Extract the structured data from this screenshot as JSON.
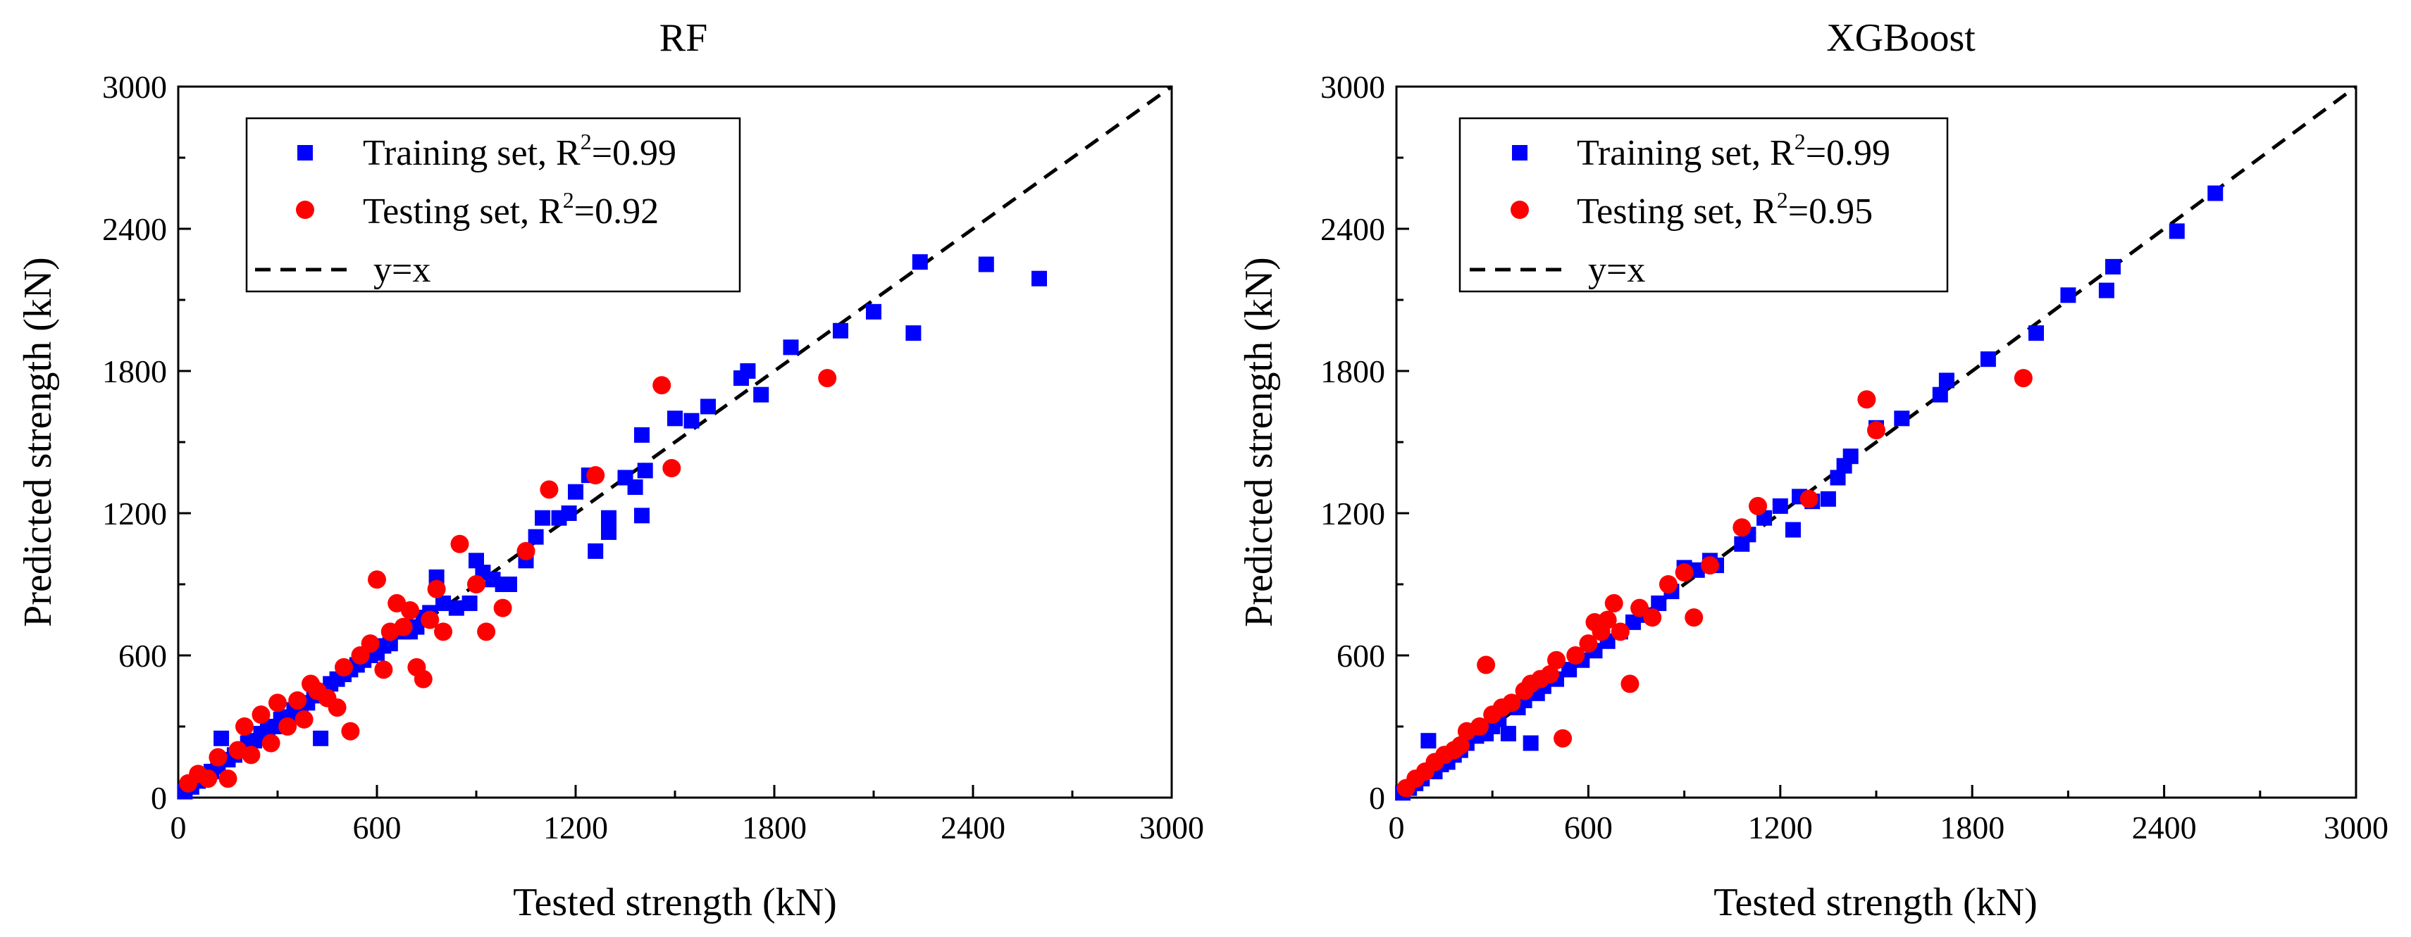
{
  "chart_data": [
    {
      "type": "scatter",
      "title": "RF",
      "xlabel": "Tested strength (kN)",
      "ylabel": "Predicted strength (kN)",
      "xlim": [
        0,
        3000
      ],
      "ylim": [
        0,
        3000
      ],
      "xticks": [
        0,
        600,
        1200,
        1800,
        2400,
        3000
      ],
      "yticks": [
        0,
        600,
        1200,
        1800,
        2400,
        3000
      ],
      "tick_labels": [
        "0",
        "600",
        "1200",
        "1800",
        "2400",
        "3000"
      ],
      "legend_position": "top-left",
      "reference_line": {
        "label": "y=x",
        "slope": 1,
        "intercept": 0,
        "style": "dashed",
        "color": "#000000"
      },
      "series": [
        {
          "name": "Training set, R2=0.99",
          "legend_label": "Training set, R",
          "legend_sup": "2",
          "legend_value": "=0.99",
          "marker": "square",
          "color": "#0000ff",
          "points": [
            [
              20,
              25
            ],
            [
              40,
              45
            ],
            [
              60,
              70
            ],
            [
              80,
              90
            ],
            [
              100,
              110
            ],
            [
              120,
              130
            ],
            [
              130,
              250
            ],
            [
              150,
              160
            ],
            [
              170,
              180
            ],
            [
              190,
              200
            ],
            [
              210,
              230
            ],
            [
              230,
              240
            ],
            [
              250,
              270
            ],
            [
              270,
              290
            ],
            [
              290,
              300
            ],
            [
              310,
              330
            ],
            [
              330,
              340
            ],
            [
              350,
              370
            ],
            [
              370,
              390
            ],
            [
              390,
              400
            ],
            [
              410,
              430
            ],
            [
              430,
              250
            ],
            [
              440,
              450
            ],
            [
              460,
              480
            ],
            [
              480,
              500
            ],
            [
              500,
              520
            ],
            [
              520,
              540
            ],
            [
              540,
              560
            ],
            [
              560,
              580
            ],
            [
              580,
              600
            ],
            [
              600,
              610
            ],
            [
              620,
              640
            ],
            [
              640,
              650
            ],
            [
              660,
              700
            ],
            [
              680,
              700
            ],
            [
              700,
              700
            ],
            [
              720,
              720
            ],
            [
              740,
              760
            ],
            [
              760,
              780
            ],
            [
              780,
              930
            ],
            [
              800,
              820
            ],
            [
              840,
              800
            ],
            [
              880,
              820
            ],
            [
              900,
              1000
            ],
            [
              920,
              950
            ],
            [
              950,
              920
            ],
            [
              980,
              900
            ],
            [
              1000,
              900
            ],
            [
              1050,
              1000
            ],
            [
              1080,
              1100
            ],
            [
              1100,
              1180
            ],
            [
              1150,
              1180
            ],
            [
              1180,
              1200
            ],
            [
              1200,
              1290
            ],
            [
              1240,
              1360
            ],
            [
              1260,
              1040
            ],
            [
              1300,
              1120
            ],
            [
              1300,
              1180
            ],
            [
              1350,
              1350
            ],
            [
              1380,
              1310
            ],
            [
              1400,
              1190
            ],
            [
              1400,
              1530
            ],
            [
              1410,
              1380
            ],
            [
              1500,
              1600
            ],
            [
              1550,
              1590
            ],
            [
              1600,
              1650
            ],
            [
              1700,
              1770
            ],
            [
              1720,
              1800
            ],
            [
              1760,
              1700
            ],
            [
              1850,
              1900
            ],
            [
              2000,
              1970
            ],
            [
              2100,
              2050
            ],
            [
              2220,
              1960
            ],
            [
              2240,
              2260
            ],
            [
              2440,
              2250
            ],
            [
              2600,
              2190
            ]
          ]
        },
        {
          "name": "Testing set, R2=0.92",
          "legend_label": "Testing set, R",
          "legend_sup": "2",
          "legend_value": "=0.92",
          "marker": "circle",
          "color": "#ff0000",
          "points": [
            [
              30,
              60
            ],
            [
              60,
              100
            ],
            [
              90,
              80
            ],
            [
              120,
              170
            ],
            [
              150,
              80
            ],
            [
              180,
              200
            ],
            [
              200,
              300
            ],
            [
              220,
              180
            ],
            [
              250,
              350
            ],
            [
              280,
              230
            ],
            [
              300,
              400
            ],
            [
              330,
              300
            ],
            [
              360,
              410
            ],
            [
              380,
              330
            ],
            [
              400,
              480
            ],
            [
              420,
              450
            ],
            [
              450,
              420
            ],
            [
              480,
              380
            ],
            [
              500,
              550
            ],
            [
              520,
              280
            ],
            [
              550,
              600
            ],
            [
              580,
              650
            ],
            [
              600,
              920
            ],
            [
              620,
              540
            ],
            [
              640,
              700
            ],
            [
              660,
              820
            ],
            [
              680,
              720
            ],
            [
              700,
              790
            ],
            [
              720,
              550
            ],
            [
              740,
              500
            ],
            [
              760,
              750
            ],
            [
              780,
              880
            ],
            [
              800,
              700
            ],
            [
              850,
              1070
            ],
            [
              900,
              900
            ],
            [
              930,
              700
            ],
            [
              980,
              800
            ],
            [
              1050,
              1040
            ],
            [
              1120,
              1300
            ],
            [
              1260,
              1360
            ],
            [
              1460,
              1740
            ],
            [
              1490,
              1390
            ],
            [
              1960,
              1770
            ]
          ]
        }
      ]
    },
    {
      "type": "scatter",
      "title": "XGBoost",
      "xlabel": "Tested strength (kN)",
      "ylabel": "Predicted strength (kN)",
      "xlim": [
        0,
        3000
      ],
      "ylim": [
        0,
        3000
      ],
      "xticks": [
        0,
        600,
        1200,
        1800,
        2400,
        3000
      ],
      "yticks": [
        0,
        600,
        1200,
        1800,
        2400,
        3000
      ],
      "tick_labels": [
        "0",
        "600",
        "1200",
        "1800",
        "2400",
        "3000"
      ],
      "legend_position": "top-left",
      "reference_line": {
        "label": "y=x",
        "slope": 1,
        "intercept": 0,
        "style": "dashed",
        "color": "#000000"
      },
      "series": [
        {
          "name": "Training set, R2=0.99",
          "legend_label": "Training set, R",
          "legend_sup": "2",
          "legend_value": "=0.99",
          "marker": "square",
          "color": "#0000ff",
          "points": [
            [
              20,
              20
            ],
            [
              40,
              40
            ],
            [
              60,
              60
            ],
            [
              80,
              80
            ],
            [
              100,
              240
            ],
            [
              120,
              110
            ],
            [
              140,
              140
            ],
            [
              160,
              150
            ],
            [
              180,
              180
            ],
            [
              200,
              200
            ],
            [
              220,
              230
            ],
            [
              250,
              260
            ],
            [
              280,
              270
            ],
            [
              300,
              300
            ],
            [
              320,
              330
            ],
            [
              350,
              270
            ],
            [
              380,
              380
            ],
            [
              400,
              410
            ],
            [
              420,
              230
            ],
            [
              440,
              440
            ],
            [
              460,
              470
            ],
            [
              500,
              500
            ],
            [
              540,
              540
            ],
            [
              580,
              580
            ],
            [
              620,
              620
            ],
            [
              660,
              660
            ],
            [
              700,
              700
            ],
            [
              740,
              740
            ],
            [
              780,
              770
            ],
            [
              820,
              820
            ],
            [
              860,
              870
            ],
            [
              900,
              970
            ],
            [
              940,
              960
            ],
            [
              980,
              1000
            ],
            [
              1000,
              980
            ],
            [
              1080,
              1070
            ],
            [
              1100,
              1110
            ],
            [
              1150,
              1180
            ],
            [
              1200,
              1230
            ],
            [
              1240,
              1130
            ],
            [
              1260,
              1270
            ],
            [
              1300,
              1250
            ],
            [
              1350,
              1260
            ],
            [
              1380,
              1350
            ],
            [
              1400,
              1400
            ],
            [
              1420,
              1440
            ],
            [
              1500,
              1560
            ],
            [
              1580,
              1600
            ],
            [
              1700,
              1700
            ],
            [
              1720,
              1760
            ],
            [
              1850,
              1850
            ],
            [
              2000,
              1960
            ],
            [
              2100,
              2120
            ],
            [
              2220,
              2140
            ],
            [
              2240,
              2240
            ],
            [
              2440,
              2390
            ],
            [
              2560,
              2550
            ]
          ]
        },
        {
          "name": "Testing set, R2=0.95",
          "legend_label": "Testing set, R",
          "legend_sup": "2",
          "legend_value": "=0.95",
          "marker": "circle",
          "color": "#ff0000",
          "points": [
            [
              30,
              40
            ],
            [
              60,
              80
            ],
            [
              90,
              110
            ],
            [
              120,
              150
            ],
            [
              150,
              180
            ],
            [
              180,
              200
            ],
            [
              200,
              220
            ],
            [
              220,
              280
            ],
            [
              260,
              300
            ],
            [
              280,
              560
            ],
            [
              300,
              350
            ],
            [
              330,
              380
            ],
            [
              360,
              400
            ],
            [
              400,
              450
            ],
            [
              420,
              480
            ],
            [
              450,
              500
            ],
            [
              480,
              520
            ],
            [
              500,
              580
            ],
            [
              520,
              250
            ],
            [
              560,
              600
            ],
            [
              600,
              650
            ],
            [
              620,
              740
            ],
            [
              640,
              700
            ],
            [
              660,
              750
            ],
            [
              680,
              820
            ],
            [
              700,
              700
            ],
            [
              730,
              480
            ],
            [
              760,
              800
            ],
            [
              800,
              760
            ],
            [
              850,
              900
            ],
            [
              900,
              950
            ],
            [
              930,
              760
            ],
            [
              980,
              980
            ],
            [
              1080,
              1140
            ],
            [
              1130,
              1230
            ],
            [
              1290,
              1260
            ],
            [
              1470,
              1680
            ],
            [
              1500,
              1550
            ],
            [
              1960,
              1770
            ]
          ]
        }
      ]
    }
  ]
}
